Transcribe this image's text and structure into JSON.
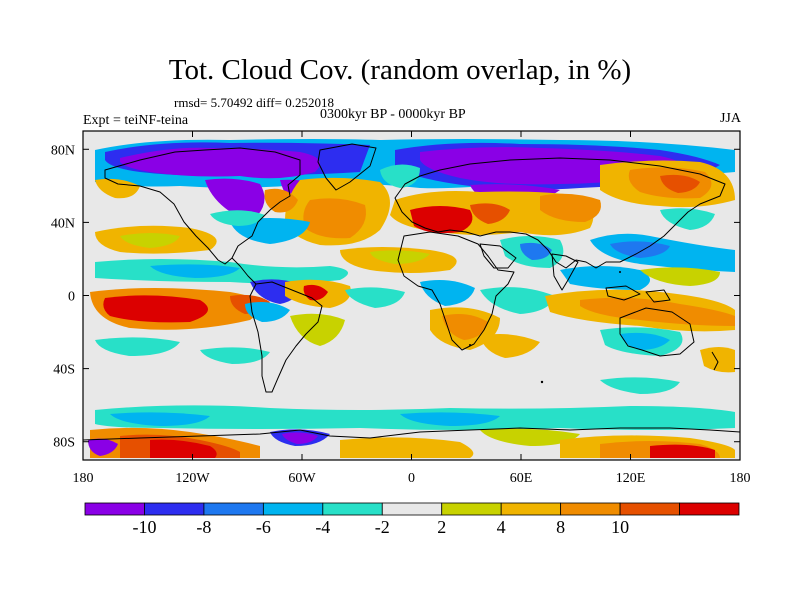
{
  "header": {
    "title": "Tot. Cloud Cov. (random overlap, in %)",
    "stats": "rmsd= 5.70492 diff= 0.252018",
    "subtitle": "0300kyr BP - 0000kyr BP",
    "experiment": "Expt = teiNF-teina",
    "season": "JJA"
  },
  "map": {
    "projection": "cylindrical-equidistant",
    "lon_range": [
      -180,
      180
    ],
    "lat_range": [
      -90,
      90
    ],
    "x_ticks": [
      {
        "value": -180,
        "label": "180"
      },
      {
        "value": -120,
        "label": "120W"
      },
      {
        "value": -60,
        "label": "60W"
      },
      {
        "value": 0,
        "label": "0"
      },
      {
        "value": 60,
        "label": "60E"
      },
      {
        "value": 120,
        "label": "120E"
      },
      {
        "value": 180,
        "label": "180"
      }
    ],
    "y_ticks": [
      {
        "value": 80,
        "label": "80N"
      },
      {
        "value": 40,
        "label": "40N"
      },
      {
        "value": 0,
        "label": "0"
      },
      {
        "value": -40,
        "label": "40S"
      },
      {
        "value": -80,
        "label": "80S"
      }
    ]
  },
  "colorbar": {
    "levels": [
      -12,
      -10,
      -8,
      -6,
      -4,
      -2,
      2,
      4,
      8,
      10,
      12
    ],
    "colors": [
      "#8a00e6",
      "#2d2df0",
      "#1e78f0",
      "#00b4f0",
      "#28e0c8",
      "#e8e8e8",
      "#c8d200",
      "#f0b400",
      "#f08c00",
      "#e65000",
      "#dc0000"
    ],
    "labels": [
      {
        "after_box": 1,
        "text": "-10"
      },
      {
        "after_box": 2,
        "text": "-8"
      },
      {
        "after_box": 3,
        "text": "-6"
      },
      {
        "after_box": 4,
        "text": "-4"
      },
      {
        "after_box": 5,
        "text": "-2"
      },
      {
        "after_box": 6,
        "text": "2"
      },
      {
        "after_box": 7,
        "text": "4"
      },
      {
        "after_box": 8,
        "text": "8"
      },
      {
        "after_box": 9,
        "text": "10"
      }
    ]
  }
}
